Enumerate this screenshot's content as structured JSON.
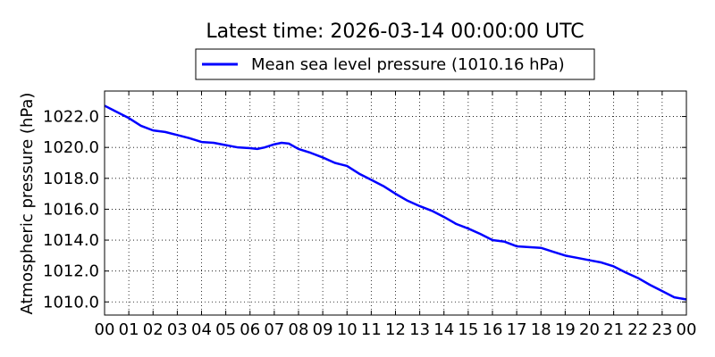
{
  "chart_data": {
    "type": "line",
    "title": "Latest time: 2026-03-14 00:00:00 UTC",
    "xlabel": "",
    "ylabel": "Atmospheric pressure (hPa)",
    "x_tick_labels": [
      "00",
      "01",
      "02",
      "03",
      "04",
      "05",
      "06",
      "07",
      "08",
      "09",
      "10",
      "11",
      "12",
      "13",
      "14",
      "15",
      "16",
      "17",
      "18",
      "19",
      "20",
      "21",
      "22",
      "23",
      "00"
    ],
    "xlim": [
      0,
      24
    ],
    "ylim": [
      1009.15,
      1023.65
    ],
    "y_ticks": [
      1010.0,
      1012.0,
      1014.0,
      1016.0,
      1018.0,
      1020.0,
      1022.0
    ],
    "y_tick_labels": [
      "1010.0",
      "1012.0",
      "1014.0",
      "1016.0",
      "1018.0",
      "1020.0",
      "1022.0"
    ],
    "grid": true,
    "legend_position": "top-center",
    "series": [
      {
        "name": "Mean sea level pressure (1010.16 hPa)",
        "color": "#0000ff",
        "x": [
          0,
          0.5,
          1,
          1.5,
          2,
          2.5,
          3,
          3.5,
          4,
          4.5,
          5,
          5.5,
          6,
          6.3,
          6.6,
          7,
          7.3,
          7.6,
          8,
          8.5,
          9,
          9.5,
          10,
          10.5,
          11,
          11.5,
          12,
          12.5,
          13,
          13.5,
          14,
          14.5,
          15,
          15.5,
          16,
          16.5,
          17,
          17.5,
          18,
          18.5,
          19,
          19.5,
          20,
          20.5,
          21,
          21.5,
          22,
          22.5,
          23,
          23.5,
          24
        ],
        "y": [
          1022.7,
          1022.3,
          1021.9,
          1021.4,
          1021.1,
          1021.0,
          1020.8,
          1020.6,
          1020.35,
          1020.3,
          1020.15,
          1020.0,
          1019.95,
          1019.9,
          1020.0,
          1020.2,
          1020.3,
          1020.25,
          1019.9,
          1019.65,
          1019.35,
          1019.0,
          1018.8,
          1018.3,
          1017.9,
          1017.5,
          1017.0,
          1016.55,
          1016.2,
          1015.9,
          1015.5,
          1015.05,
          1014.75,
          1014.4,
          1014.0,
          1013.9,
          1013.6,
          1013.55,
          1013.5,
          1013.25,
          1013.0,
          1012.85,
          1012.7,
          1012.55,
          1012.3,
          1011.9,
          1011.55,
          1011.1,
          1010.7,
          1010.3,
          1010.16
        ]
      }
    ]
  }
}
